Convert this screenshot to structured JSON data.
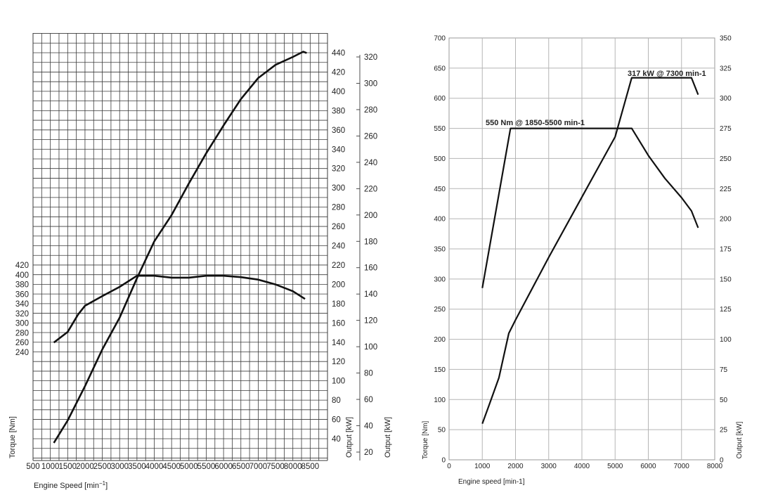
{
  "chart_data": [
    {
      "type": "line",
      "xlabel": "Engine Speed [min",
      "xlabel_sup": "−1",
      "xlabel_end": "]",
      "y_left_label": "Torque [Nm]",
      "y_right_label_1": "Output [kW]",
      "y_right_label_2": "Output [kW]",
      "x_ticks": [
        500,
        1000,
        1500,
        2000,
        2500,
        3000,
        3500,
        4000,
        4500,
        5000,
        5500,
        6000,
        6500,
        7000,
        7500,
        8000,
        8500
      ],
      "xlim": [
        500,
        9000
      ],
      "y_left_ticks": [
        240,
        260,
        280,
        300,
        320,
        340,
        360,
        380,
        400,
        420
      ],
      "y_right_ticks_1": [
        40,
        60,
        80,
        100,
        120,
        140,
        160,
        180,
        200,
        220,
        240,
        260,
        280,
        300,
        320,
        340,
        360,
        380,
        400,
        420,
        440
      ],
      "y_right_ticks_2": [
        20,
        40,
        60,
        80,
        100,
        120,
        140,
        160,
        180,
        200,
        220,
        240,
        260,
        280,
        300,
        320
      ],
      "grid": true,
      "series": [
        {
          "axis": "torque",
          "x": [
            1100,
            1500,
            1800,
            2000,
            2200,
            2500,
            3000,
            3500,
            4000,
            4500,
            5000,
            5500,
            6000,
            6500,
            7000,
            7500,
            8000,
            8350
          ],
          "y": [
            260,
            282,
            318,
            336,
            344,
            356,
            375,
            398,
            398,
            394,
            394,
            398,
            398,
            395,
            390,
            380,
            366,
            350
          ]
        },
        {
          "axis": "output",
          "x": [
            1100,
            1500,
            2000,
            2500,
            3000,
            3500,
            4000,
            4500,
            5000,
            5500,
            6000,
            6500,
            7000,
            7500,
            8000,
            8300,
            8400
          ],
          "y": [
            27,
            44,
            70,
            98,
            122,
            152,
            180,
            200,
            224,
            247,
            268,
            288,
            304,
            314,
            320,
            324,
            323
          ]
        }
      ]
    },
    {
      "type": "line",
      "xlabel": "Engine speed [min-1]",
      "y_left_label": "Torque [Nm]",
      "y_right_label": "Output [kW]",
      "x_ticks": [
        0,
        1000,
        2000,
        3000,
        4000,
        5000,
        6000,
        7000,
        8000
      ],
      "xlim": [
        0,
        8000
      ],
      "y_left_ticks": [
        0,
        50,
        100,
        150,
        200,
        250,
        300,
        350,
        400,
        450,
        500,
        550,
        600,
        650,
        700
      ],
      "ylim_left": [
        0,
        700
      ],
      "y_right_ticks": [
        0,
        25,
        50,
        75,
        100,
        125,
        150,
        175,
        200,
        225,
        250,
        275,
        300,
        325,
        350
      ],
      "ylim_right": [
        0,
        350
      ],
      "grid": true,
      "annotations": [
        "550 Nm @ 1850-5500 min-1",
        "317 kW @ 7300 min-1"
      ],
      "series": [
        {
          "axis": "torque",
          "x": [
            1000,
            1850,
            5500,
            6000,
            6500,
            7000,
            7300,
            7500
          ],
          "y": [
            285,
            550,
            550,
            505,
            467,
            435,
            413,
            385
          ]
        },
        {
          "axis": "output",
          "x": [
            1000,
            1200,
            1500,
            1800,
            2000,
            3000,
            4000,
            5000,
            5500,
            6000,
            7000,
            7300,
            7500
          ],
          "y": [
            30,
            45,
            68,
            105,
            116,
            168,
            218,
            268,
            317,
            317,
            317,
            317,
            303
          ]
        }
      ]
    }
  ]
}
